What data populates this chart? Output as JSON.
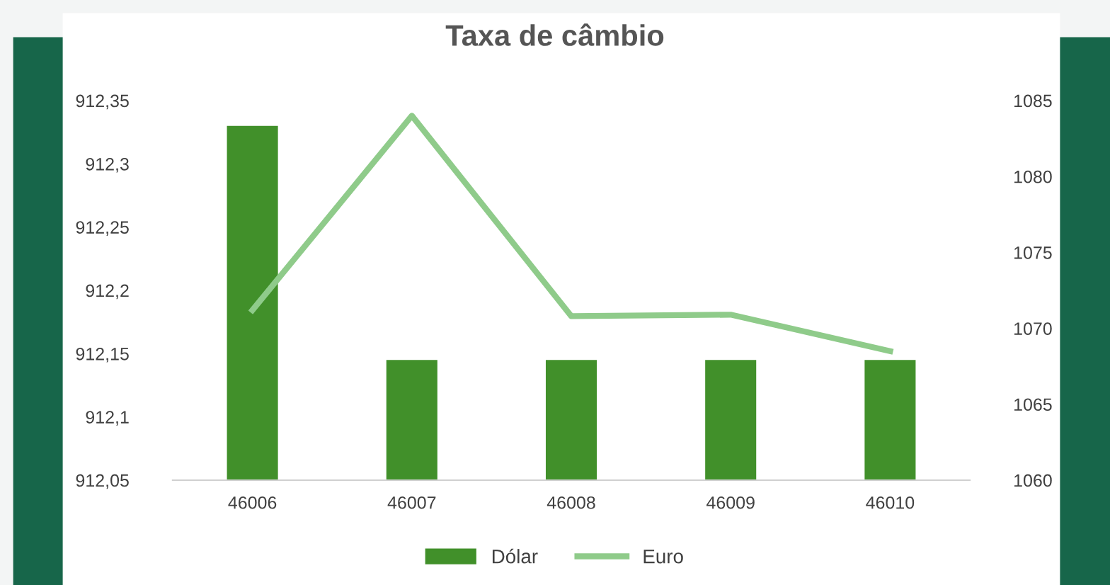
{
  "chart_data": {
    "type": "bar",
    "title": "Taxa de câmbio",
    "categories": [
      "46006",
      "46007",
      "46008",
      "46009",
      "46010"
    ],
    "series": [
      {
        "name": "Dólar",
        "color": "#41902a",
        "values": [
          912.33,
          912.145,
          912.145,
          912.145,
          912.145
        ]
      },
      {
        "name": "Euro",
        "type": "line",
        "axis": "y2",
        "color": "#8fcb8a",
        "values": [
          1071.2,
          1084.0,
          1070.8,
          1070.9,
          1068.5
        ]
      }
    ],
    "ylim": [
      912.05,
      912.35
    ],
    "yticks": [
      {
        "value": 912.05,
        "label": "912,05"
      },
      {
        "value": 912.1,
        "label": "912,1"
      },
      {
        "value": 912.15,
        "label": "912,15"
      },
      {
        "value": 912.2,
        "label": "912,2"
      },
      {
        "value": 912.25,
        "label": "912,25"
      },
      {
        "value": 912.3,
        "label": "912,3"
      },
      {
        "value": 912.35,
        "label": "912,35"
      }
    ],
    "y2lim": [
      1060,
      1085
    ],
    "y2ticks": [
      1060,
      1065,
      1070,
      1075,
      1080,
      1085
    ],
    "grid": false,
    "legend": "bottom",
    "marker": "none",
    "line_style": "solid"
  }
}
